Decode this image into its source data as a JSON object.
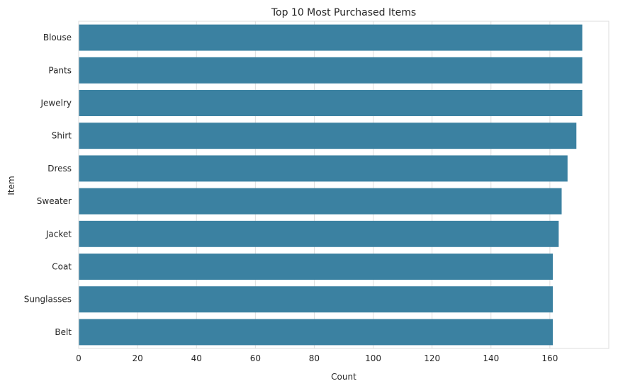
{
  "colors": {
    "bar": "#3b81a1",
    "grid": "#dddddd",
    "background": "#ffffff",
    "text": "#262626"
  },
  "chart_data": {
    "type": "bar",
    "orientation": "horizontal",
    "title": "Top 10 Most Purchased Items",
    "xlabel": "Count",
    "ylabel": "Item",
    "categories": [
      "Blouse",
      "Pants",
      "Jewelry",
      "Shirt",
      "Dress",
      "Sweater",
      "Jacket",
      "Coat",
      "Sunglasses",
      "Belt"
    ],
    "values": [
      171,
      171,
      171,
      169,
      166,
      164,
      163,
      161,
      161,
      161
    ],
    "xlim": [
      0,
      180
    ],
    "xticks": [
      0,
      20,
      40,
      60,
      80,
      100,
      120,
      140,
      160
    ],
    "grid": true
  }
}
